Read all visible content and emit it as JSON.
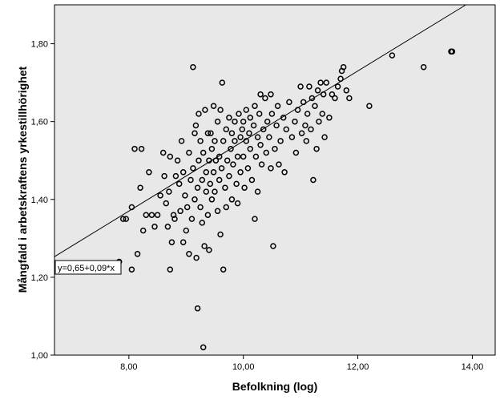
{
  "chart_data": {
    "type": "scatter",
    "title": "",
    "xlabel": "Befolkning (log)",
    "ylabel": "Mångfald i arbetskraftens yrkestillhörighet",
    "xlim": [
      6.7,
      14.4
    ],
    "ylim": [
      1.0,
      1.9
    ],
    "x_ticks": [
      8,
      10,
      12,
      14
    ],
    "y_ticks": [
      1.0,
      1.2,
      1.4,
      1.6,
      1.8
    ],
    "x_tick_labels": [
      "8,00",
      "10,00",
      "12,00",
      "14,00"
    ],
    "y_tick_labels": [
      "1,00",
      "1,20",
      "1,40",
      "1,60",
      "1,80"
    ],
    "grid": false,
    "legend": "none",
    "fit_line": {
      "intercept": 0.65,
      "slope": 0.09,
      "label": "y=0,65+0,09*x"
    },
    "colors": {
      "plot_background": "#e8e8e8",
      "marker": "#000000",
      "line": "#000000"
    },
    "points": [
      [
        7.83,
        1.24
      ],
      [
        7.9,
        1.35
      ],
      [
        7.95,
        1.35
      ],
      [
        8.05,
        1.38
      ],
      [
        8.05,
        1.22
      ],
      [
        8.1,
        1.53
      ],
      [
        8.15,
        1.26
      ],
      [
        8.2,
        1.43
      ],
      [
        8.22,
        1.53
      ],
      [
        8.25,
        1.32
      ],
      [
        8.3,
        1.36
      ],
      [
        8.35,
        1.47
      ],
      [
        8.4,
        1.36
      ],
      [
        8.45,
        1.33
      ],
      [
        8.5,
        1.36
      ],
      [
        8.55,
        1.41
      ],
      [
        8.6,
        1.52
      ],
      [
        8.62,
        1.46
      ],
      [
        8.65,
        1.39
      ],
      [
        8.68,
        1.33
      ],
      [
        8.7,
        1.42
      ],
      [
        8.72,
        1.51
      ],
      [
        8.72,
        1.22
      ],
      [
        8.75,
        1.29
      ],
      [
        8.78,
        1.36
      ],
      [
        8.8,
        1.35
      ],
      [
        8.82,
        1.46
      ],
      [
        8.85,
        1.5
      ],
      [
        8.88,
        1.44
      ],
      [
        8.9,
        1.37
      ],
      [
        8.92,
        1.55
      ],
      [
        8.95,
        1.47
      ],
      [
        8.95,
        1.29
      ],
      [
        8.98,
        1.41
      ],
      [
        9.0,
        1.32
      ],
      [
        9.02,
        1.38
      ],
      [
        9.05,
        1.26
      ],
      [
        9.05,
        1.52
      ],
      [
        9.08,
        1.45
      ],
      [
        9.1,
        1.35
      ],
      [
        9.12,
        1.48
      ],
      [
        9.12,
        1.74
      ],
      [
        9.15,
        1.57
      ],
      [
        9.15,
        1.4
      ],
      [
        9.17,
        1.59
      ],
      [
        9.18,
        1.25
      ],
      [
        9.2,
        1.43
      ],
      [
        9.2,
        1.12
      ],
      [
        9.22,
        1.5
      ],
      [
        9.22,
        1.62
      ],
      [
        9.25,
        1.38
      ],
      [
        9.25,
        1.55
      ],
      [
        9.28,
        1.34
      ],
      [
        9.28,
        1.45
      ],
      [
        9.3,
        1.52
      ],
      [
        9.3,
        1.02
      ],
      [
        9.32,
        1.28
      ],
      [
        9.33,
        1.63
      ],
      [
        9.35,
        1.47
      ],
      [
        9.35,
        1.42
      ],
      [
        9.38,
        1.57
      ],
      [
        9.38,
        1.36
      ],
      [
        9.4,
        1.5
      ],
      [
        9.4,
        1.27
      ],
      [
        9.42,
        1.44
      ],
      [
        9.43,
        1.57
      ],
      [
        9.45,
        1.4
      ],
      [
        9.45,
        1.53
      ],
      [
        9.48,
        1.64
      ],
      [
        9.48,
        1.47
      ],
      [
        9.5,
        1.55
      ],
      [
        9.5,
        1.42
      ],
      [
        9.52,
        1.5
      ],
      [
        9.55,
        1.6
      ],
      [
        9.55,
        1.37
      ],
      [
        9.58,
        1.45
      ],
      [
        9.58,
        1.51
      ],
      [
        9.6,
        1.63
      ],
      [
        9.6,
        1.31
      ],
      [
        9.62,
        1.48
      ],
      [
        9.63,
        1.7
      ],
      [
        9.65,
        1.55
      ],
      [
        9.65,
        1.22
      ],
      [
        9.68,
        1.43
      ],
      [
        9.7,
        1.58
      ],
      [
        9.7,
        1.38
      ],
      [
        9.72,
        1.5
      ],
      [
        9.75,
        1.46
      ],
      [
        9.75,
        1.61
      ],
      [
        9.78,
        1.53
      ],
      [
        9.8,
        1.4
      ],
      [
        9.8,
        1.57
      ],
      [
        9.82,
        1.49
      ],
      [
        9.85,
        1.55
      ],
      [
        9.85,
        1.6
      ],
      [
        9.88,
        1.44
      ],
      [
        9.9,
        1.51
      ],
      [
        9.9,
        1.39
      ],
      [
        9.92,
        1.62
      ],
      [
        9.95,
        1.56
      ],
      [
        9.95,
        1.47
      ],
      [
        9.98,
        1.58
      ],
      [
        10.0,
        1.51
      ],
      [
        10.0,
        1.6
      ],
      [
        10.02,
        1.43
      ],
      [
        10.05,
        1.55
      ],
      [
        10.05,
        1.63
      ],
      [
        10.08,
        1.48
      ],
      [
        10.1,
        1.57
      ],
      [
        10.12,
        1.53
      ],
      [
        10.12,
        1.61
      ],
      [
        10.15,
        1.45
      ],
      [
        10.18,
        1.59
      ],
      [
        10.2,
        1.64
      ],
      [
        10.2,
        1.35
      ],
      [
        10.22,
        1.51
      ],
      [
        10.25,
        1.56
      ],
      [
        10.25,
        1.42
      ],
      [
        10.28,
        1.62
      ],
      [
        10.3,
        1.67
      ],
      [
        10.3,
        1.54
      ],
      [
        10.32,
        1.49
      ],
      [
        10.35,
        1.58
      ],
      [
        10.38,
        1.66
      ],
      [
        10.4,
        1.52
      ],
      [
        10.42,
        1.6
      ],
      [
        10.45,
        1.56
      ],
      [
        10.48,
        1.67
      ],
      [
        10.48,
        1.48
      ],
      [
        10.5,
        1.62
      ],
      [
        10.52,
        1.28
      ],
      [
        10.55,
        1.53
      ],
      [
        10.58,
        1.59
      ],
      [
        10.6,
        1.64
      ],
      [
        10.62,
        1.49
      ],
      [
        10.65,
        1.55
      ],
      [
        10.7,
        1.61
      ],
      [
        10.72,
        1.47
      ],
      [
        10.75,
        1.58
      ],
      [
        10.8,
        1.65
      ],
      [
        10.85,
        1.56
      ],
      [
        10.9,
        1.6
      ],
      [
        10.92,
        1.52
      ],
      [
        10.95,
        1.63
      ],
      [
        11.0,
        1.69
      ],
      [
        11.02,
        1.57
      ],
      [
        11.05,
        1.65
      ],
      [
        11.08,
        1.59
      ],
      [
        11.1,
        1.55
      ],
      [
        11.12,
        1.62
      ],
      [
        11.15,
        1.69
      ],
      [
        11.18,
        1.58
      ],
      [
        11.2,
        1.66
      ],
      [
        11.22,
        1.45
      ],
      [
        11.25,
        1.64
      ],
      [
        11.28,
        1.53
      ],
      [
        11.3,
        1.68
      ],
      [
        11.32,
        1.6
      ],
      [
        11.35,
        1.7
      ],
      [
        11.38,
        1.62
      ],
      [
        11.4,
        1.67
      ],
      [
        11.42,
        1.56
      ],
      [
        11.45,
        1.7
      ],
      [
        11.5,
        1.61
      ],
      [
        11.55,
        1.67
      ],
      [
        11.6,
        1.66
      ],
      [
        11.65,
        1.69
      ],
      [
        11.7,
        1.71
      ],
      [
        11.72,
        1.73
      ],
      [
        11.75,
        1.74
      ],
      [
        11.8,
        1.68
      ],
      [
        11.85,
        1.66
      ],
      [
        12.2,
        1.64
      ],
      [
        12.6,
        1.77
      ],
      [
        13.15,
        1.74
      ],
      [
        13.65,
        1.78
      ],
      [
        13.63,
        1.78
      ]
    ]
  }
}
